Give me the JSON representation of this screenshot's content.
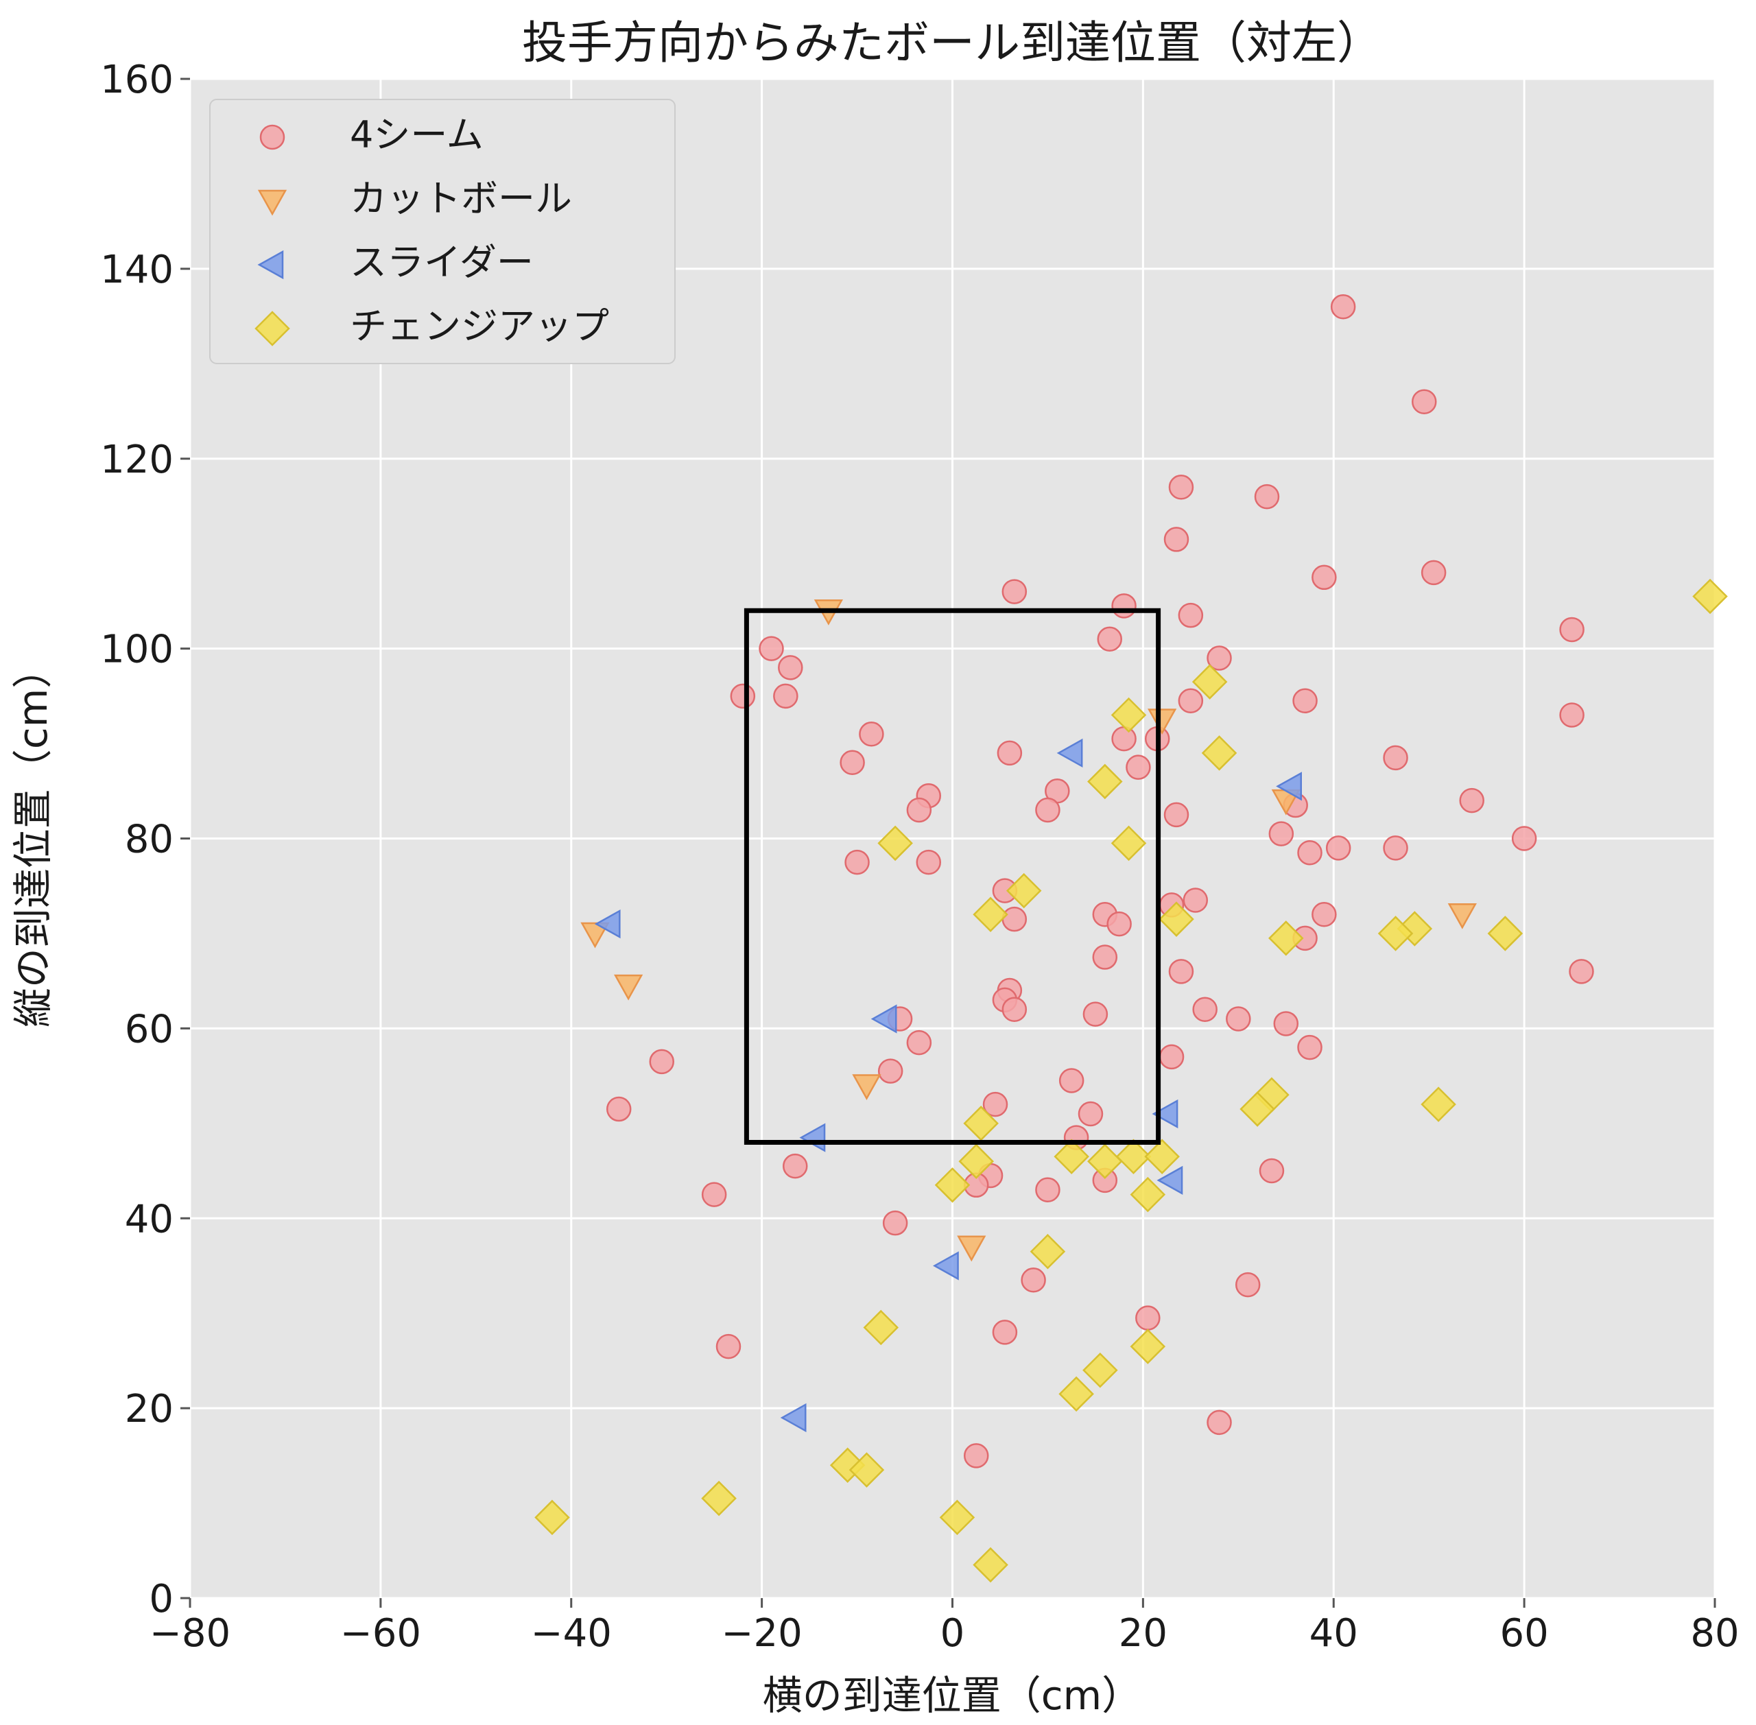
{
  "chart_data": {
    "type": "scatter",
    "title": "投手方向からみたボール到達位置（対左）",
    "xlabel": "横の到達位置（cm）",
    "ylabel": "縦の到達位置（cm）",
    "xlim": [
      -80,
      80
    ],
    "ylim": [
      0,
      160
    ],
    "xticks": [
      "−80",
      "−60",
      "−40",
      "−20",
      "0",
      "20",
      "40",
      "60",
      "80"
    ],
    "yticks": [
      "0",
      "20",
      "40",
      "60",
      "80",
      "100",
      "120",
      "140",
      "160"
    ],
    "grid": true,
    "legend_position": "top-left",
    "background_color": "#e5e5e5",
    "strike_zone": {
      "x": [
        -21.6,
        21.6
      ],
      "y": [
        48,
        104
      ]
    },
    "series": [
      {
        "name": "4シーム",
        "marker": "circle",
        "color": "#f4a5a8",
        "edge_color": "#e06a6e",
        "points": [
          [
            41,
            136
          ],
          [
            49.5,
            126
          ],
          [
            24,
            117
          ],
          [
            33,
            116
          ],
          [
            23.5,
            111.5
          ],
          [
            50.5,
            108
          ],
          [
            39,
            107.5
          ],
          [
            6.5,
            106
          ],
          [
            18,
            104.5
          ],
          [
            25,
            103.5
          ],
          [
            65,
            102
          ],
          [
            16.5,
            101
          ],
          [
            -19,
            100
          ],
          [
            -17,
            98
          ],
          [
            28,
            99
          ],
          [
            -22,
            95
          ],
          [
            -17.5,
            95
          ],
          [
            25,
            94.5
          ],
          [
            37,
            94.5
          ],
          [
            65,
            93
          ],
          [
            -8.5,
            91
          ],
          [
            18,
            90.5
          ],
          [
            21.5,
            90.5
          ],
          [
            6,
            89
          ],
          [
            46.5,
            88.5
          ],
          [
            -10.5,
            88
          ],
          [
            19.5,
            87.5
          ],
          [
            11,
            85
          ],
          [
            -2.5,
            84.5
          ],
          [
            36,
            83.5
          ],
          [
            54.5,
            84
          ],
          [
            10,
            83
          ],
          [
            -3.5,
            83
          ],
          [
            23.5,
            82.5
          ],
          [
            34.5,
            80.5
          ],
          [
            60,
            80
          ],
          [
            40.5,
            79
          ],
          [
            46.5,
            79
          ],
          [
            37.5,
            78.5
          ],
          [
            -10,
            77.5
          ],
          [
            -2.5,
            77.5
          ],
          [
            5.5,
            74.5
          ],
          [
            25.5,
            73.5
          ],
          [
            23,
            73
          ],
          [
            16,
            72
          ],
          [
            6.5,
            71.5
          ],
          [
            39,
            72
          ],
          [
            17.5,
            71
          ],
          [
            37,
            69.5
          ],
          [
            16,
            67.5
          ],
          [
            24,
            66
          ],
          [
            66,
            66
          ],
          [
            6,
            64
          ],
          [
            5.5,
            63
          ],
          [
            6.5,
            62
          ],
          [
            26.5,
            62
          ],
          [
            15,
            61.5
          ],
          [
            30,
            61
          ],
          [
            -5.5,
            61
          ],
          [
            35,
            60.5
          ],
          [
            37.5,
            58
          ],
          [
            -3.5,
            58.5
          ],
          [
            23,
            57
          ],
          [
            -6.5,
            55.5
          ],
          [
            -30.5,
            56.5
          ],
          [
            12.5,
            54.5
          ],
          [
            -35,
            51.5
          ],
          [
            14.5,
            51
          ],
          [
            4.5,
            52
          ],
          [
            13,
            48.5
          ],
          [
            -16.5,
            45.5
          ],
          [
            33.5,
            45
          ],
          [
            4,
            44.5
          ],
          [
            2.5,
            43.5
          ],
          [
            16,
            44
          ],
          [
            10,
            43
          ],
          [
            -25,
            42.5
          ],
          [
            -6,
            39.5
          ],
          [
            8.5,
            33.5
          ],
          [
            31,
            33
          ],
          [
            20.5,
            29.5
          ],
          [
            5.5,
            28
          ],
          [
            -23.5,
            26.5
          ],
          [
            28,
            18.5
          ],
          [
            2.5,
            15
          ]
        ]
      },
      {
        "name": "カットボール",
        "marker": "triangle-down",
        "color": "#f9b667",
        "edge_color": "#e8944a",
        "points": [
          [
            -13,
            104
          ],
          [
            22,
            92.5
          ],
          [
            35,
            84
          ],
          [
            -37.5,
            70
          ],
          [
            53.5,
            72
          ],
          [
            -34,
            64.5
          ],
          [
            -9,
            54
          ],
          [
            2,
            37
          ]
        ]
      },
      {
        "name": "スライダー",
        "marker": "triangle-left",
        "color": "#7b9cea",
        "edge_color": "#5a7fd6",
        "points": [
          [
            12.5,
            89
          ],
          [
            35.5,
            85.5
          ],
          [
            -36,
            71
          ],
          [
            -7,
            61
          ],
          [
            22.5,
            51
          ],
          [
            -14.5,
            48.5
          ],
          [
            23,
            44
          ],
          [
            -0.5,
            35
          ],
          [
            -16.5,
            19
          ]
        ]
      },
      {
        "name": "チェンジアップ",
        "marker": "diamond",
        "color": "#f5df4d",
        "edge_color": "#d8c030",
        "points": [
          [
            79.5,
            105.5
          ],
          [
            27,
            96.5
          ],
          [
            18.5,
            93
          ],
          [
            28,
            89
          ],
          [
            16,
            86
          ],
          [
            18.5,
            79.5
          ],
          [
            -6,
            79.5
          ],
          [
            7.5,
            74.5
          ],
          [
            4,
            72
          ],
          [
            23.5,
            71.5
          ],
          [
            48.5,
            70.5
          ],
          [
            46.5,
            70
          ],
          [
            58,
            70
          ],
          [
            35,
            69.5
          ],
          [
            33.5,
            53
          ],
          [
            32,
            51.5
          ],
          [
            51,
            52
          ],
          [
            3,
            50
          ],
          [
            2.5,
            46
          ],
          [
            12.5,
            46.5
          ],
          [
            16,
            46
          ],
          [
            19,
            46.5
          ],
          [
            22,
            46.5
          ],
          [
            0,
            43.5
          ],
          [
            20.5,
            42.5
          ],
          [
            10,
            36.5
          ],
          [
            -7.5,
            28.5
          ],
          [
            20.5,
            26.5
          ],
          [
            15.5,
            24
          ],
          [
            13,
            21.5
          ],
          [
            -11,
            14
          ],
          [
            -9,
            13.5
          ],
          [
            -24.5,
            10.5
          ],
          [
            -42,
            8.5
          ],
          [
            0.5,
            8.5
          ],
          [
            4,
            3.5
          ]
        ]
      }
    ]
  }
}
